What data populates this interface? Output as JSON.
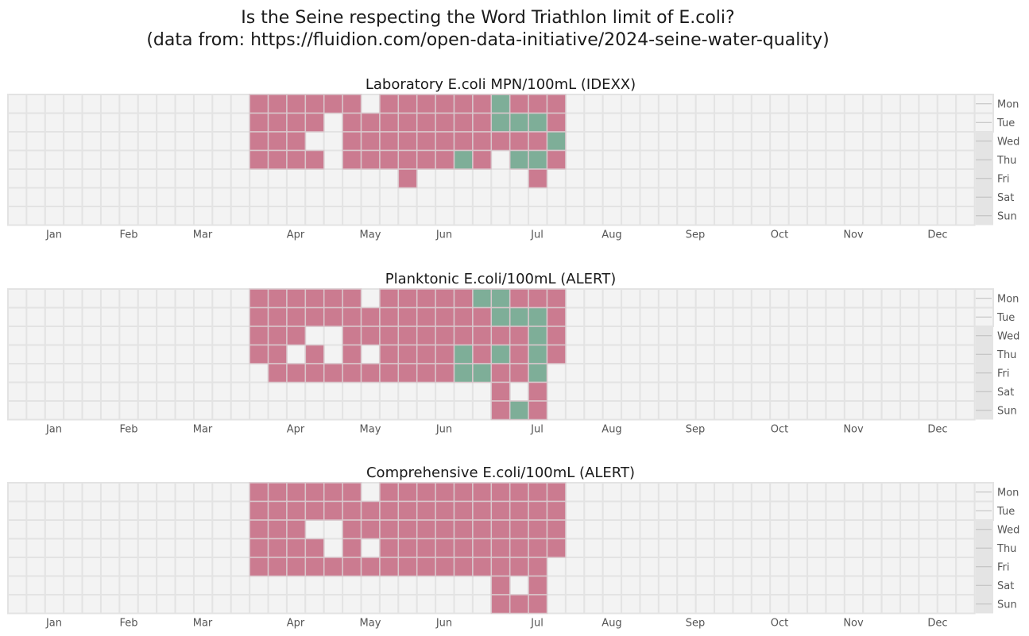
{
  "figure": {
    "title_line1": "Is the Seine respecting the Word Triathlon limit of E.coli?",
    "title_line2": "(data from: https://fluidion.com/open-data-initiative/2024-seine-water-quality)"
  },
  "colors": {
    "exceeds_limit": "#cb7b90",
    "within_limit": "#7eae98",
    "empty_cell": "#f3f3f3",
    "cell_border": "#e3e3e3",
    "data_cell_border": "#d9c7cc"
  },
  "legend_code": {
    "1": "exceeds_limit",
    "0": "within_limit"
  },
  "chart_data": [
    {
      "type": "heatmap",
      "title": "Laboratory E.coli MPN/100mL (IDEXX)",
      "x_tick_labels": [
        "Jan",
        "Feb",
        "Mar",
        "Apr",
        "May",
        "Jun",
        "Jul",
        "Aug",
        "Sep",
        "Oct",
        "Nov",
        "Dec"
      ],
      "y_tick_labels": [
        "Mon",
        "Tue",
        "Wed",
        "Thu",
        "Fri",
        "Sat",
        "Sun"
      ],
      "week_range": [
        1,
        53
      ],
      "weeks": [
        14,
        15,
        16,
        17,
        18,
        19,
        20,
        21,
        22,
        23,
        24,
        25,
        26,
        27,
        28,
        29,
        30,
        31
      ],
      "cells_by_weekday": {
        "Mon": [
          1,
          1,
          1,
          1,
          1,
          1,
          null,
          1,
          1,
          1,
          1,
          1,
          1,
          0,
          1,
          1,
          1,
          null
        ],
        "Tue": [
          1,
          1,
          1,
          1,
          null,
          1,
          1,
          1,
          1,
          1,
          1,
          1,
          1,
          0,
          0,
          0,
          1,
          null
        ],
        "Wed": [
          1,
          1,
          1,
          null,
          null,
          1,
          1,
          1,
          1,
          1,
          1,
          1,
          1,
          1,
          1,
          1,
          0,
          null
        ],
        "Thu": [
          1,
          1,
          1,
          1,
          null,
          1,
          1,
          1,
          1,
          1,
          1,
          0,
          1,
          null,
          0,
          0,
          1,
          null
        ],
        "Fri": [
          null,
          null,
          null,
          null,
          null,
          null,
          null,
          null,
          1,
          null,
          null,
          null,
          null,
          null,
          null,
          1,
          null,
          null
        ],
        "Sat": [
          null,
          null,
          null,
          null,
          null,
          null,
          null,
          null,
          null,
          null,
          null,
          null,
          null,
          null,
          null,
          null,
          null,
          null
        ],
        "Sun": [
          null,
          null,
          null,
          null,
          null,
          null,
          null,
          null,
          null,
          null,
          null,
          null,
          null,
          null,
          null,
          null,
          null,
          null
        ]
      }
    },
    {
      "type": "heatmap",
      "title": "Planktonic E.coli/100mL (ALERT)",
      "x_tick_labels": [
        "Jan",
        "Feb",
        "Mar",
        "Apr",
        "May",
        "Jun",
        "Jul",
        "Aug",
        "Sep",
        "Oct",
        "Nov",
        "Dec"
      ],
      "y_tick_labels": [
        "Mon",
        "Tue",
        "Wed",
        "Thu",
        "Fri",
        "Sat",
        "Sun"
      ],
      "week_range": [
        1,
        53
      ],
      "weeks": [
        14,
        15,
        16,
        17,
        18,
        19,
        20,
        21,
        22,
        23,
        24,
        25,
        26,
        27,
        28,
        29,
        30,
        31
      ],
      "cells_by_weekday": {
        "Mon": [
          1,
          1,
          1,
          1,
          1,
          1,
          null,
          1,
          1,
          1,
          1,
          1,
          0,
          0,
          1,
          1,
          1,
          null
        ],
        "Tue": [
          1,
          1,
          1,
          1,
          1,
          1,
          1,
          1,
          1,
          1,
          1,
          1,
          1,
          0,
          0,
          0,
          1,
          null
        ],
        "Wed": [
          1,
          1,
          1,
          null,
          null,
          1,
          1,
          1,
          1,
          1,
          1,
          1,
          1,
          1,
          1,
          0,
          1,
          null
        ],
        "Thu": [
          1,
          1,
          null,
          1,
          null,
          1,
          null,
          1,
          1,
          1,
          1,
          0,
          1,
          0,
          1,
          0,
          1,
          null
        ],
        "Fri": [
          null,
          1,
          1,
          1,
          1,
          1,
          1,
          1,
          1,
          1,
          1,
          0,
          0,
          1,
          1,
          0,
          null,
          null
        ],
        "Sat": [
          null,
          null,
          null,
          null,
          null,
          null,
          null,
          null,
          null,
          null,
          null,
          null,
          null,
          1,
          null,
          1,
          null,
          null
        ],
        "Sun": [
          null,
          null,
          null,
          null,
          null,
          null,
          null,
          null,
          null,
          null,
          null,
          null,
          null,
          1,
          0,
          1,
          null,
          null
        ]
      }
    },
    {
      "type": "heatmap",
      "title": "Comprehensive E.coli/100mL (ALERT)",
      "x_tick_labels": [
        "Jan",
        "Feb",
        "Mar",
        "Apr",
        "May",
        "Jun",
        "Jul",
        "Aug",
        "Sep",
        "Oct",
        "Nov",
        "Dec"
      ],
      "y_tick_labels": [
        "Mon",
        "Tue",
        "Wed",
        "Thu",
        "Fri",
        "Sat",
        "Sun"
      ],
      "week_range": [
        1,
        53
      ],
      "weeks": [
        14,
        15,
        16,
        17,
        18,
        19,
        20,
        21,
        22,
        23,
        24,
        25,
        26,
        27,
        28,
        29,
        30,
        31
      ],
      "cells_by_weekday": {
        "Mon": [
          1,
          1,
          1,
          1,
          1,
          1,
          null,
          1,
          1,
          1,
          1,
          1,
          1,
          1,
          1,
          1,
          1,
          null
        ],
        "Tue": [
          1,
          1,
          1,
          1,
          1,
          1,
          1,
          1,
          1,
          1,
          1,
          1,
          1,
          1,
          1,
          1,
          1,
          null
        ],
        "Wed": [
          1,
          1,
          1,
          null,
          null,
          1,
          1,
          1,
          1,
          1,
          1,
          1,
          1,
          1,
          1,
          1,
          1,
          null
        ],
        "Thu": [
          1,
          1,
          1,
          1,
          null,
          1,
          null,
          1,
          1,
          1,
          1,
          1,
          1,
          1,
          1,
          1,
          1,
          null
        ],
        "Fri": [
          1,
          1,
          1,
          1,
          1,
          1,
          1,
          1,
          1,
          1,
          1,
          1,
          1,
          1,
          1,
          1,
          null,
          null
        ],
        "Sat": [
          null,
          null,
          null,
          null,
          null,
          null,
          null,
          null,
          null,
          null,
          null,
          null,
          null,
          1,
          null,
          1,
          null,
          null
        ],
        "Sun": [
          null,
          null,
          null,
          null,
          null,
          null,
          null,
          null,
          null,
          null,
          null,
          null,
          null,
          1,
          1,
          1,
          null,
          null
        ]
      }
    }
  ]
}
